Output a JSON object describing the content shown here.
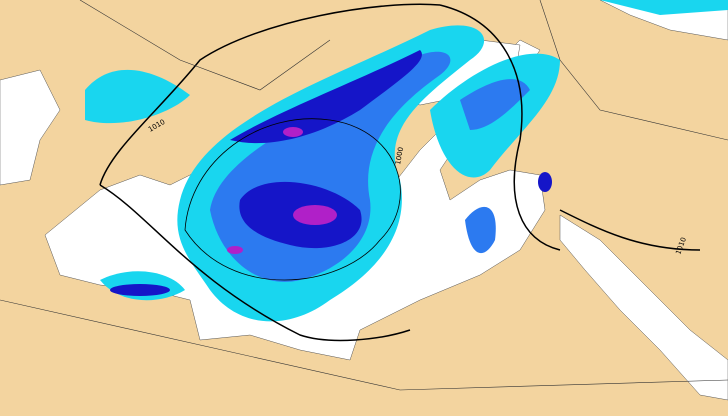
{
  "isobar_labels": [
    "1010",
    "1000",
    "1010"
  ]
}
